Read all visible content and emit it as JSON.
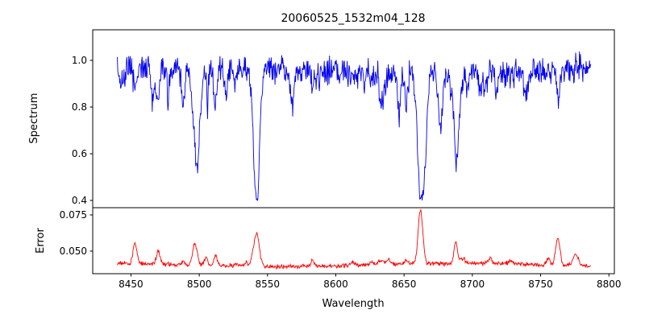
{
  "chart_data": {
    "type": "line",
    "title": "20060525_1532m04_128",
    "xlabel": "Wavelength",
    "xlim": [
      8422,
      8804
    ],
    "x_range": [
      8440,
      8787
    ],
    "x_step": 0.35,
    "xticks": [
      8450,
      8500,
      8550,
      8600,
      8650,
      8700,
      8750,
      8800
    ],
    "xtick_labels": [
      "8450",
      "8500",
      "8550",
      "8600",
      "8650",
      "8700",
      "8750",
      "8800"
    ],
    "grid": false,
    "legend": "none",
    "seed": 7,
    "panels": [
      {
        "name": "spectrum",
        "ylabel": "Spectrum",
        "color": "#0000ee",
        "ylim": [
          0.369,
          1.131
        ],
        "yticks": [
          0.4,
          0.6,
          0.8,
          1.0
        ],
        "ytick_labels": [
          "0.4",
          "0.6",
          "0.8",
          "1.0"
        ],
        "continuum": 0.957,
        "continuum_wobble": 0.012,
        "noise_sigma": 0.028,
        "clamp": [
          0.4,
          1.1
        ],
        "absorption_lines": [
          {
            "center": 8453,
            "depth": 0.11,
            "sigma": 1.0
          },
          {
            "center": 8470,
            "depth": 0.13,
            "sigma": 1.0
          },
          {
            "center": 8498,
            "depth": 0.4,
            "sigma": 1.8
          },
          {
            "center": 8512,
            "depth": 0.15,
            "sigma": 1.0
          },
          {
            "center": 8542,
            "depth": 0.54,
            "sigma": 2.2
          },
          {
            "center": 8583,
            "depth": 0.08,
            "sigma": 0.9
          },
          {
            "center": 8662,
            "depth": 0.53,
            "sigma": 2.0
          },
          {
            "center": 8688,
            "depth": 0.31,
            "sigma": 1.4
          },
          {
            "center": 8763,
            "depth": 0.12,
            "sigma": 1.1
          }
        ],
        "micro_lines": {
          "count": 42,
          "depth_min": 0.03,
          "depth_max": 0.2,
          "sigma_min": 0.4,
          "sigma_max": 1.5
        }
      },
      {
        "name": "error",
        "ylabel": "Error",
        "color": "#ff0000",
        "ylim": [
          0.0344,
          0.08
        ],
        "yticks": [
          0.05,
          0.075
        ],
        "ytick_labels": [
          "0.050",
          "0.075"
        ],
        "baseline": 0.0405,
        "baseline_wobble": 0.0011,
        "noise_sigma": 0.0007,
        "clamp": [
          0.036,
          0.0785
        ],
        "peaks": [
          {
            "center": 8453,
            "amp": 0.014,
            "sigma": 1.4
          },
          {
            "center": 8470,
            "amp": 0.009,
            "sigma": 1.3
          },
          {
            "center": 8497,
            "amp": 0.013,
            "sigma": 1.8
          },
          {
            "center": 8505,
            "amp": 0.006,
            "sigma": 1.2
          },
          {
            "center": 8512,
            "amp": 0.007,
            "sigma": 1.2
          },
          {
            "center": 8542,
            "amp": 0.022,
            "sigma": 2.0
          },
          {
            "center": 8583,
            "amp": 0.004,
            "sigma": 1.2
          },
          {
            "center": 8662,
            "amp": 0.037,
            "sigma": 1.7
          },
          {
            "center": 8688,
            "amp": 0.012,
            "sigma": 1.3
          },
          {
            "center": 8713,
            "amp": 0.004,
            "sigma": 1.2
          },
          {
            "center": 8763,
            "amp": 0.013,
            "sigma": 1.5
          },
          {
            "center": 8776,
            "amp": 0.007,
            "sigma": 1.8
          }
        ],
        "micro_bumps": {
          "count": 25,
          "amp_min": 0.0008,
          "amp_max": 0.0035,
          "sigma_min": 0.5,
          "sigma_max": 1.5
        }
      }
    ],
    "axes_color": "#000000",
    "background": "#ffffff"
  }
}
